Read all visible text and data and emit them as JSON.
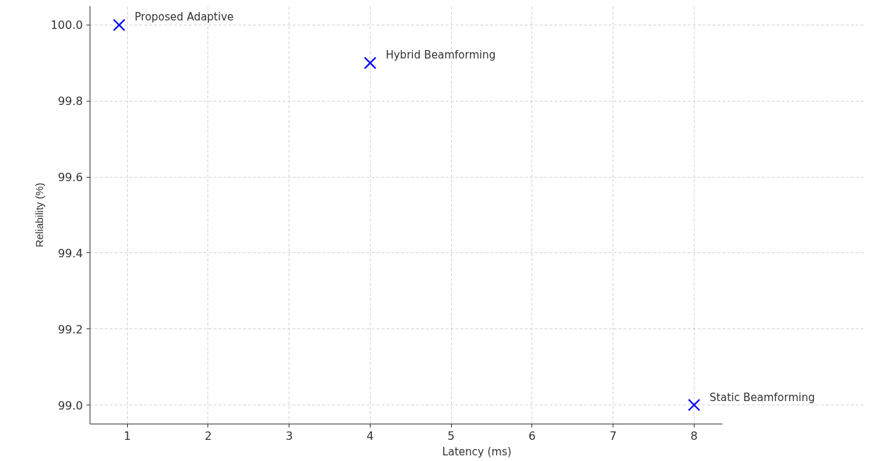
{
  "chart_data": {
    "type": "scatter",
    "xlabel": "Latency (ms)",
    "ylabel": "Reliability (%)",
    "x": [
      0.9,
      4,
      8
    ],
    "series": [
      {
        "color": "#0000ff",
        "values": [
          100.0,
          99.9,
          99.0
        ]
      }
    ],
    "marker": "cross",
    "grid": true,
    "xlim": [
      0.54,
      8.35
    ],
    "ylim": [
      98.95,
      100.05
    ],
    "xticks": [
      1,
      2,
      3,
      4,
      5,
      6,
      7,
      8
    ],
    "yticks": [
      {
        "value": 99.0,
        "label": "99.0"
      },
      {
        "value": 99.2,
        "label": "99.2"
      },
      {
        "value": 99.4,
        "label": "99.4"
      },
      {
        "value": 99.6,
        "label": "99.6"
      },
      {
        "value": 99.8,
        "label": "99.8"
      },
      {
        "value": 100.0,
        "label": "100.0"
      }
    ],
    "annotations": [
      {
        "text": "Proposed Adaptive",
        "x": 0.9,
        "y": 100.0
      },
      {
        "text": "Hybrid Beamforming",
        "x": 4,
        "y": 99.9
      },
      {
        "text": "Static Beamforming",
        "x": 8,
        "y": 99.0
      }
    ]
  }
}
